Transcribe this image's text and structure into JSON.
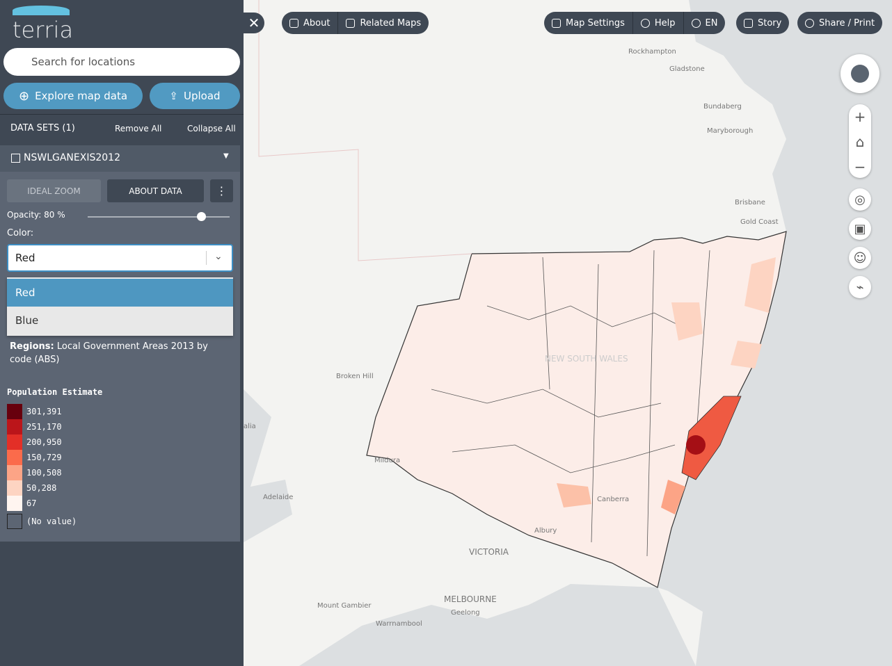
{
  "logo": "terria",
  "search": {
    "placeholder": "Search for locations"
  },
  "buttons": {
    "explore": "Explore map data",
    "upload": "Upload"
  },
  "datasets": {
    "header": "DATA SETS (1)",
    "remove_all": "Remove All",
    "collapse_all": "Collapse All"
  },
  "layer": {
    "name": "NSWLGANEXIS2012",
    "ideal_zoom": "IDEAL ZOOM",
    "about_data": "ABOUT DATA",
    "opacity_label": "Opacity: 80 %",
    "color_label": "Color:",
    "color_value": "Red",
    "options": [
      "Red",
      "Blue"
    ],
    "regions_label": "Regions:",
    "regions_text": "Local Government Areas 2013 by code (ABS)"
  },
  "legend": {
    "title": "Population Estimate",
    "items": [
      {
        "label": "301,391",
        "color": "#67000d"
      },
      {
        "label": "251,170",
        "color": "#bb151a"
      },
      {
        "label": "200,950",
        "color": "#e32f27"
      },
      {
        "label": "150,729",
        "color": "#fb6b4b"
      },
      {
        "label": "100,508",
        "color": "#fca486"
      },
      {
        "label": "50,288",
        "color": "#fdd4c2"
      },
      {
        "label": "67",
        "color": "#fff5f0"
      }
    ],
    "no_value": "(No value)"
  },
  "toolbar": {
    "about": "About",
    "related_maps": "Related Maps",
    "map_settings": "Map Settings",
    "help": "Help",
    "language": "EN",
    "story": "Story",
    "share": "Share / Print"
  },
  "map_labels": [
    "Rockhampton",
    "Gladstone",
    "Bundaberg",
    "Maryborough",
    "Brisbane",
    "Gold Coast",
    "Broken Hill",
    "Mildura",
    "Adelaide",
    "alia",
    "Albury",
    "VICTORIA",
    "MELBOURNE",
    "Geelong",
    "Mount Gambier",
    "Warrnambool",
    "NEW SOUTH WALES",
    "Canberra"
  ]
}
